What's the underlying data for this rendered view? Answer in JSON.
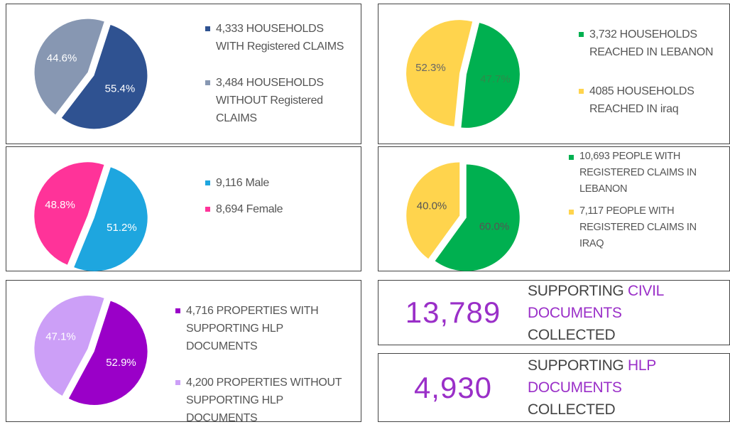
{
  "chart_data": [
    {
      "type": "pie",
      "categories": [
        "4,333 HOUSEHOLDS WITH Registered CLAIMS",
        "3,484 HOUSEHOLDS WITHOUT Registered CLAIMS"
      ],
      "values": [
        55.4,
        44.6
      ],
      "value_labels": [
        "55.4%",
        "44.6%"
      ],
      "colors": [
        "#2f5291",
        "#8797b2"
      ],
      "label_colors": [
        "#ffffff",
        "#ffffff"
      ]
    },
    {
      "type": "pie",
      "categories": [
        "3,732 HOUSEHOLDS REACHED IN LEBANON",
        "4085 HOUSEHOLDS REACHED IN iraq"
      ],
      "values": [
        47.7,
        52.3
      ],
      "value_labels": [
        "47.7%",
        "52.3%"
      ],
      "colors": [
        "#00b050",
        "#ffd44d"
      ],
      "label_colors": [
        "#2f8a4a",
        "#666666"
      ]
    },
    {
      "type": "pie",
      "categories": [
        "9,116 Male",
        "8,694 Female"
      ],
      "values": [
        51.2,
        48.8
      ],
      "value_labels": [
        "51.2%",
        "48.8%"
      ],
      "colors": [
        "#1ea6df",
        "#ff3399"
      ],
      "label_colors": [
        "#ffffff",
        "#ffffff"
      ]
    },
    {
      "type": "pie",
      "categories": [
        "10,693 PEOPLE WITH REGISTERED CLAIMS IN LEBANON",
        "7,117 PEOPLE WITH REGISTERED CLAIMS IN IRAQ"
      ],
      "values": [
        60.0,
        40.0
      ],
      "value_labels": [
        "60.0%",
        "40.0%"
      ],
      "colors": [
        "#00b050",
        "#ffd44d"
      ],
      "label_colors": [
        "#555555",
        "#555555"
      ]
    },
    {
      "type": "pie",
      "categories": [
        "4,716 PROPERTIES WITH SUPPORTING HLP DOCUMENTS",
        "4,200 PROPERTIES WITHOUT SUPPORTING HLP DOCUMENTS"
      ],
      "values": [
        52.9,
        47.1
      ],
      "value_labels": [
        "52.9%",
        "47.1%"
      ],
      "colors": [
        "#9a00c8",
        "#cc9ff7"
      ],
      "label_colors": [
        "#ffffff",
        "#ffffff"
      ]
    }
  ],
  "stats": [
    {
      "value": "13,789",
      "words": [
        "SUPPORTING",
        "CIVIL",
        "DOCUMENTS",
        "COLLECTED"
      ],
      "highlight": [
        false,
        true,
        true,
        false
      ]
    },
    {
      "value": "4,930",
      "words": [
        "SUPPORTING",
        "HLP",
        "DOCUMENTS",
        "COLLECTED"
      ],
      "highlight": [
        false,
        true,
        true,
        false
      ]
    }
  ]
}
